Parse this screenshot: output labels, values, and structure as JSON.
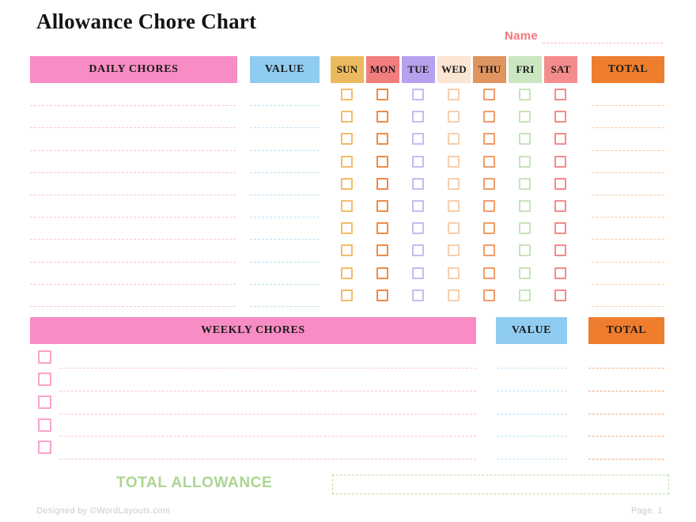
{
  "page": {
    "title": "Allowance Chore Chart",
    "name_label": "Name",
    "footer_left": "Designed by ©WordLayouts.com",
    "footer_right": "Page. 1"
  },
  "colors": {
    "pink_bar": "#F88CC4",
    "blue_bar": "#90CCF0",
    "orange_bar": "#EE7D2E",
    "pink_line": "#F7C3DE",
    "blue_line": "#BEE1F6",
    "orange_line_light": "#F7C9A2",
    "orange_line": "#F6AC7C",
    "name_pink": "#F5757D",
    "name_line": "#F5ADBB",
    "green_text": "#ABD593",
    "green_box_border": "#B9DDA6",
    "footer_gray": "#CCCCCC"
  },
  "daily": {
    "header_label": "DAILY CHORES",
    "value_label": "VALUE",
    "total_label": "TOTAL",
    "row_count": 10,
    "days": [
      {
        "label": "SUN",
        "bg": "#EBBA5E",
        "box": "#F3BC6A"
      },
      {
        "label": "MON",
        "bg": "#F17D7D",
        "box": "#F08A46"
      },
      {
        "label": "TUE",
        "bg": "#B7A1EF",
        "box": "#CBB9F2"
      },
      {
        "label": "WED",
        "bg": "#FBE5D3",
        "box": "#F7CFAE"
      },
      {
        "label": "THU",
        "bg": "#E0945F",
        "box": "#F19C69"
      },
      {
        "label": "FRI",
        "bg": "#CCE6C1",
        "box": "#C7E3BB"
      },
      {
        "label": "SAT",
        "bg": "#F58C8C",
        "box": "#F48A8E"
      }
    ]
  },
  "weekly": {
    "header_label": "WEEKLY CHORES",
    "value_label": "VALUE",
    "total_label": "TOTAL",
    "row_count": 5,
    "checkbox_color": "#F9A2CC"
  },
  "total_allowance": {
    "label": "TOTAL ALLOWANCE",
    "value": ""
  }
}
